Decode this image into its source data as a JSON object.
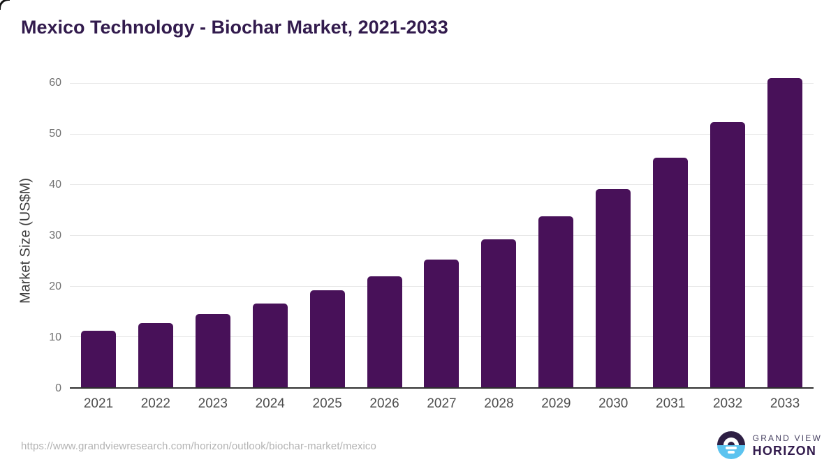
{
  "chart_data": {
    "type": "bar",
    "title": "Mexico Technology - Biochar Market, 2021-2033",
    "categories": [
      "2021",
      "2022",
      "2023",
      "2024",
      "2025",
      "2026",
      "2027",
      "2028",
      "2029",
      "2030",
      "2031",
      "2032",
      "2033"
    ],
    "values": [
      11.1,
      12.6,
      14.4,
      16.5,
      19.1,
      21.9,
      25.2,
      29.2,
      33.7,
      39.1,
      45.3,
      52.3,
      60.9
    ],
    "xlabel": "",
    "ylabel": "Market Size (US$M)",
    "ylim": [
      0,
      63
    ],
    "yticks": [
      0,
      10,
      20,
      30,
      40,
      50,
      60
    ],
    "grid": "horizontal",
    "legend": "none",
    "bar_color": "#481159"
  },
  "colors": {
    "title": "#321b4d",
    "bar": "#481159",
    "gridline": "#e8e8e8",
    "axis_line": "#2f2f2f",
    "y_tick_text": "#707070",
    "x_tick_text": "#4d4d4d",
    "url_text": "#b3b3b3",
    "logo_dark": "#2e1f44",
    "logo_blue": "#5cc3ef"
  },
  "footer": {
    "source_url": "https://www.grandviewresearch.com/horizon/outlook/biochar-market/mexico",
    "logo": {
      "line1": "GRAND VIEW",
      "line2": "HORIZON"
    }
  }
}
